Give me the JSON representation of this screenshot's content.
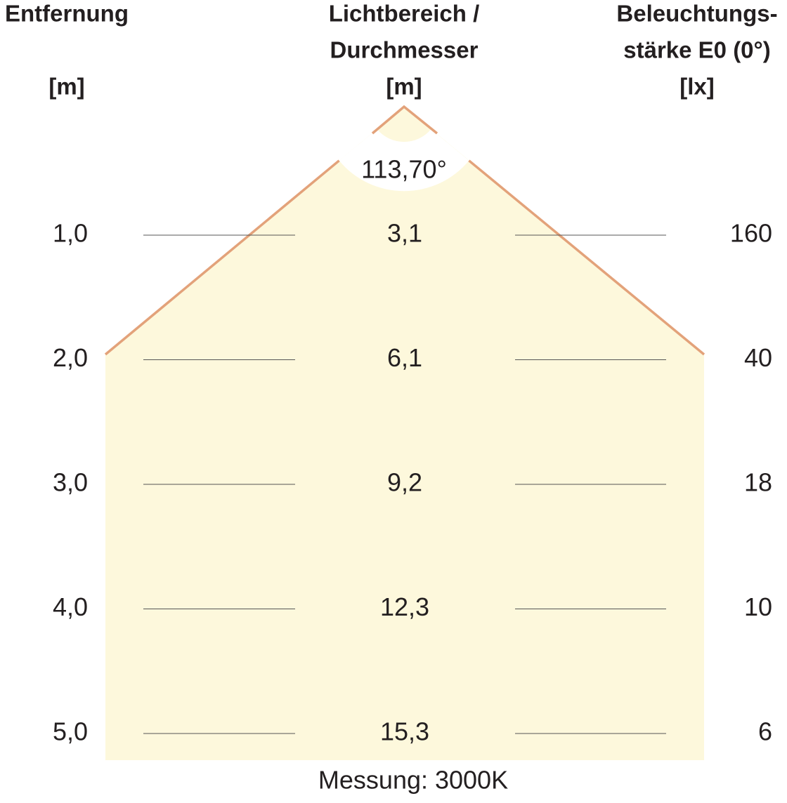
{
  "header": {
    "distance": [
      "Entfernung",
      "[m]"
    ],
    "diameter": [
      "Lichtbereich /",
      "Durchmesser",
      "[m]"
    ],
    "illuminance": [
      "Beleuchtungs-",
      "stärke E0 (0°)",
      "[lx]"
    ]
  },
  "angle": "113,70°",
  "rows": [
    {
      "distance": "1,0",
      "diameter": "3,1",
      "illuminance": "160"
    },
    {
      "distance": "2,0",
      "diameter": "6,1",
      "illuminance": "40"
    },
    {
      "distance": "3,0",
      "diameter": "9,2",
      "illuminance": "18"
    },
    {
      "distance": "4,0",
      "diameter": "12,3",
      "illuminance": "10"
    },
    {
      "distance": "5,0",
      "diameter": "15,3",
      "illuminance": "6"
    }
  ],
  "footer": "Messung: 3000K"
}
